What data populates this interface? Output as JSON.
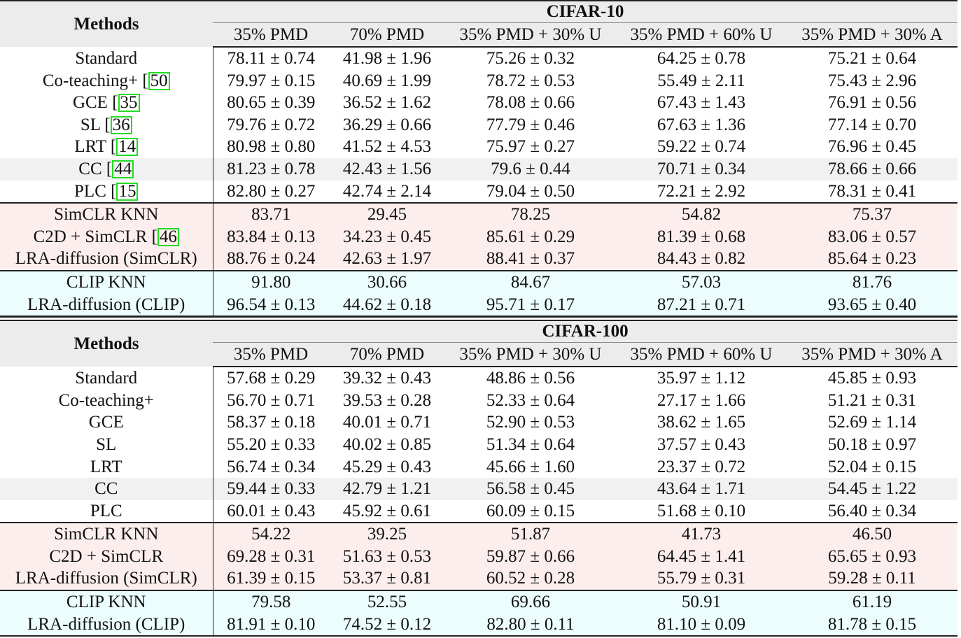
{
  "tables": [
    {
      "dataset": "CIFAR-10",
      "methods_header": "Methods",
      "columns": [
        "35% PMD",
        "70% PMD",
        "35% PMD + 30% U",
        "35% PMD + 60% U",
        "35% PMD + 30% A"
      ],
      "groups": {
        "baselines": [
          {
            "method": "Standard",
            "ref": "",
            "values": [
              "78.11 ± 0.74",
              "41.98 ± 1.96",
              "75.26 ± 0.32",
              "64.25 ± 0.78",
              "75.21 ± 0.64"
            ]
          },
          {
            "method": "Co-teaching+ [",
            "ref": "50",
            "values": [
              "79.97 ± 0.15",
              "40.69 ± 1.99",
              "78.72 ± 0.53",
              "55.49 ± 2.11",
              "75.43 ± 2.96"
            ]
          },
          {
            "method": "GCE [",
            "ref": "35",
            "values": [
              "80.65 ± 0.39",
              "36.52 ± 1.62",
              "78.08 ± 0.66",
              "67.43 ± 1.43",
              "76.91 ± 0.56"
            ]
          },
          {
            "method": "SL [",
            "ref": "36",
            "values": [
              "79.76 ± 0.72",
              "36.29 ± 0.66",
              "77.79 ± 0.46",
              "67.63 ± 1.36",
              "77.14 ± 0.70"
            ]
          },
          {
            "method": "LRT [",
            "ref": "14",
            "values": [
              "80.98 ± 0.80",
              "41.52 ± 4.53",
              "75.97 ± 0.27",
              "59.22 ± 0.74",
              "76.96 ± 0.45"
            ]
          },
          {
            "method": "CC [",
            "ref": "44",
            "values": [
              "81.23 ± 0.78",
              "42.43 ± 1.56",
              "79.6 ± 0.44",
              "70.71 ± 0.34",
              "78.66 ± 0.66"
            ]
          },
          {
            "method": "PLC [",
            "ref": "15",
            "values": [
              "82.80 ± 0.27",
              "42.74 ± 2.14",
              "79.04 ± 0.50",
              "72.21 ± 2.92",
              "78.31 ± 0.41"
            ]
          }
        ],
        "simclr": [
          {
            "method": "SimCLR KNN",
            "ref": "",
            "values": [
              "83.71",
              "29.45",
              "78.25",
              "54.82",
              "75.37"
            ]
          },
          {
            "method": "C2D + SimCLR [",
            "ref": "46",
            "values": [
              "83.84 ± 0.13",
              "34.23 ± 0.45",
              "85.61 ± 0.29",
              "81.39 ± 0.68",
              "83.06 ± 0.57"
            ]
          },
          {
            "method": "LRA-diffusion (SimCLR)",
            "ref": "",
            "values": [
              "88.76 ± 0.24",
              "42.63 ± 1.97",
              "88.41 ± 0.37",
              "84.43 ± 0.82",
              "85.64 ± 0.23"
            ]
          }
        ],
        "clip": [
          {
            "method": "CLIP KNN",
            "ref": "",
            "values": [
              "91.80",
              "30.66",
              "84.67",
              "57.03",
              "81.76"
            ]
          },
          {
            "method": "LRA-diffusion (CLIP)",
            "ref": "",
            "values": [
              "96.54 ± 0.13",
              "44.62 ± 0.18",
              "95.71 ± 0.17",
              "87.21 ± 0.71",
              "93.65 ± 0.40"
            ]
          }
        ]
      }
    },
    {
      "dataset": "CIFAR-100",
      "methods_header": "Methods",
      "columns": [
        "35% PMD",
        "70% PMD",
        "35% PMD + 30% U",
        "35% PMD + 60% U",
        "35% PMD + 30% A"
      ],
      "groups": {
        "baselines": [
          {
            "method": "Standard",
            "ref": "",
            "values": [
              "57.68 ± 0.29",
              "39.32 ± 0.43",
              "48.86 ± 0.56",
              "35.97 ± 1.12",
              "45.85 ± 0.93"
            ]
          },
          {
            "method": "Co-teaching+",
            "ref": "",
            "values": [
              "56.70 ± 0.71",
              "39.53 ± 0.28",
              "52.33 ± 0.64",
              "27.17 ± 1.66",
              "51.21 ± 0.31"
            ]
          },
          {
            "method": "GCE",
            "ref": "",
            "values": [
              "58.37 ± 0.18",
              "40.01 ± 0.71",
              "52.90 ± 0.53",
              "38.62 ± 1.65",
              "52.69 ± 1.14"
            ]
          },
          {
            "method": "SL",
            "ref": "",
            "values": [
              "55.20 ± 0.33",
              "40.02 ± 0.85",
              "51.34 ± 0.64",
              "37.57 ± 0.43",
              "50.18 ± 0.97"
            ]
          },
          {
            "method": "LRT",
            "ref": "",
            "values": [
              "56.74 ± 0.34",
              "45.29 ± 0.43",
              "45.66 ± 1.60",
              "23.37 ± 0.72",
              "52.04 ± 0.15"
            ]
          },
          {
            "method": "CC",
            "ref": "",
            "values": [
              "59.44 ± 0.33",
              "42.79 ± 1.21",
              "56.58 ± 0.45",
              "43.64 ± 1.71",
              "54.45 ± 1.22"
            ]
          },
          {
            "method": "PLC",
            "ref": "",
            "values": [
              "60.01 ± 0.43",
              "45.92 ± 0.61",
              "60.09 ± 0.15",
              "51.68 ± 0.10",
              "56.40 ± 0.34"
            ]
          }
        ],
        "simclr": [
          {
            "method": "SimCLR KNN",
            "ref": "",
            "values": [
              "54.22",
              "39.25",
              "51.87",
              "41.73",
              "46.50"
            ]
          },
          {
            "method": "C2D + SimCLR",
            "ref": "",
            "values": [
              "69.28 ± 0.31",
              "51.63 ± 0.53",
              "59.87 ± 0.66",
              "64.45 ± 1.41",
              "65.65 ± 0.93"
            ]
          },
          {
            "method": "LRA-diffusion (SimCLR)",
            "ref": "",
            "values": [
              "61.39 ± 0.15",
              "53.37 ± 0.81",
              "60.52 ± 0.28",
              "55.79 ± 0.31",
              "59.28 ± 0.11"
            ]
          }
        ],
        "clip": [
          {
            "method": "CLIP KNN",
            "ref": "",
            "values": [
              "79.58",
              "52.55",
              "69.66",
              "50.91",
              "61.19"
            ]
          },
          {
            "method": "LRA-diffusion (CLIP)",
            "ref": "",
            "values": [
              "81.91 ± 0.10",
              "74.52 ± 0.12",
              "82.80 ± 0.11",
              "81.10 ± 0.09",
              "81.78 ± 0.15"
            ]
          }
        ]
      }
    }
  ],
  "colors": {
    "header_bg": "#ececec",
    "highlight_row_bg": "#f1f1f1",
    "simclr_group_bg": "#fdeeee",
    "clip_group_bg": "#ecfdfe",
    "citation_box": "#22dd22"
  }
}
